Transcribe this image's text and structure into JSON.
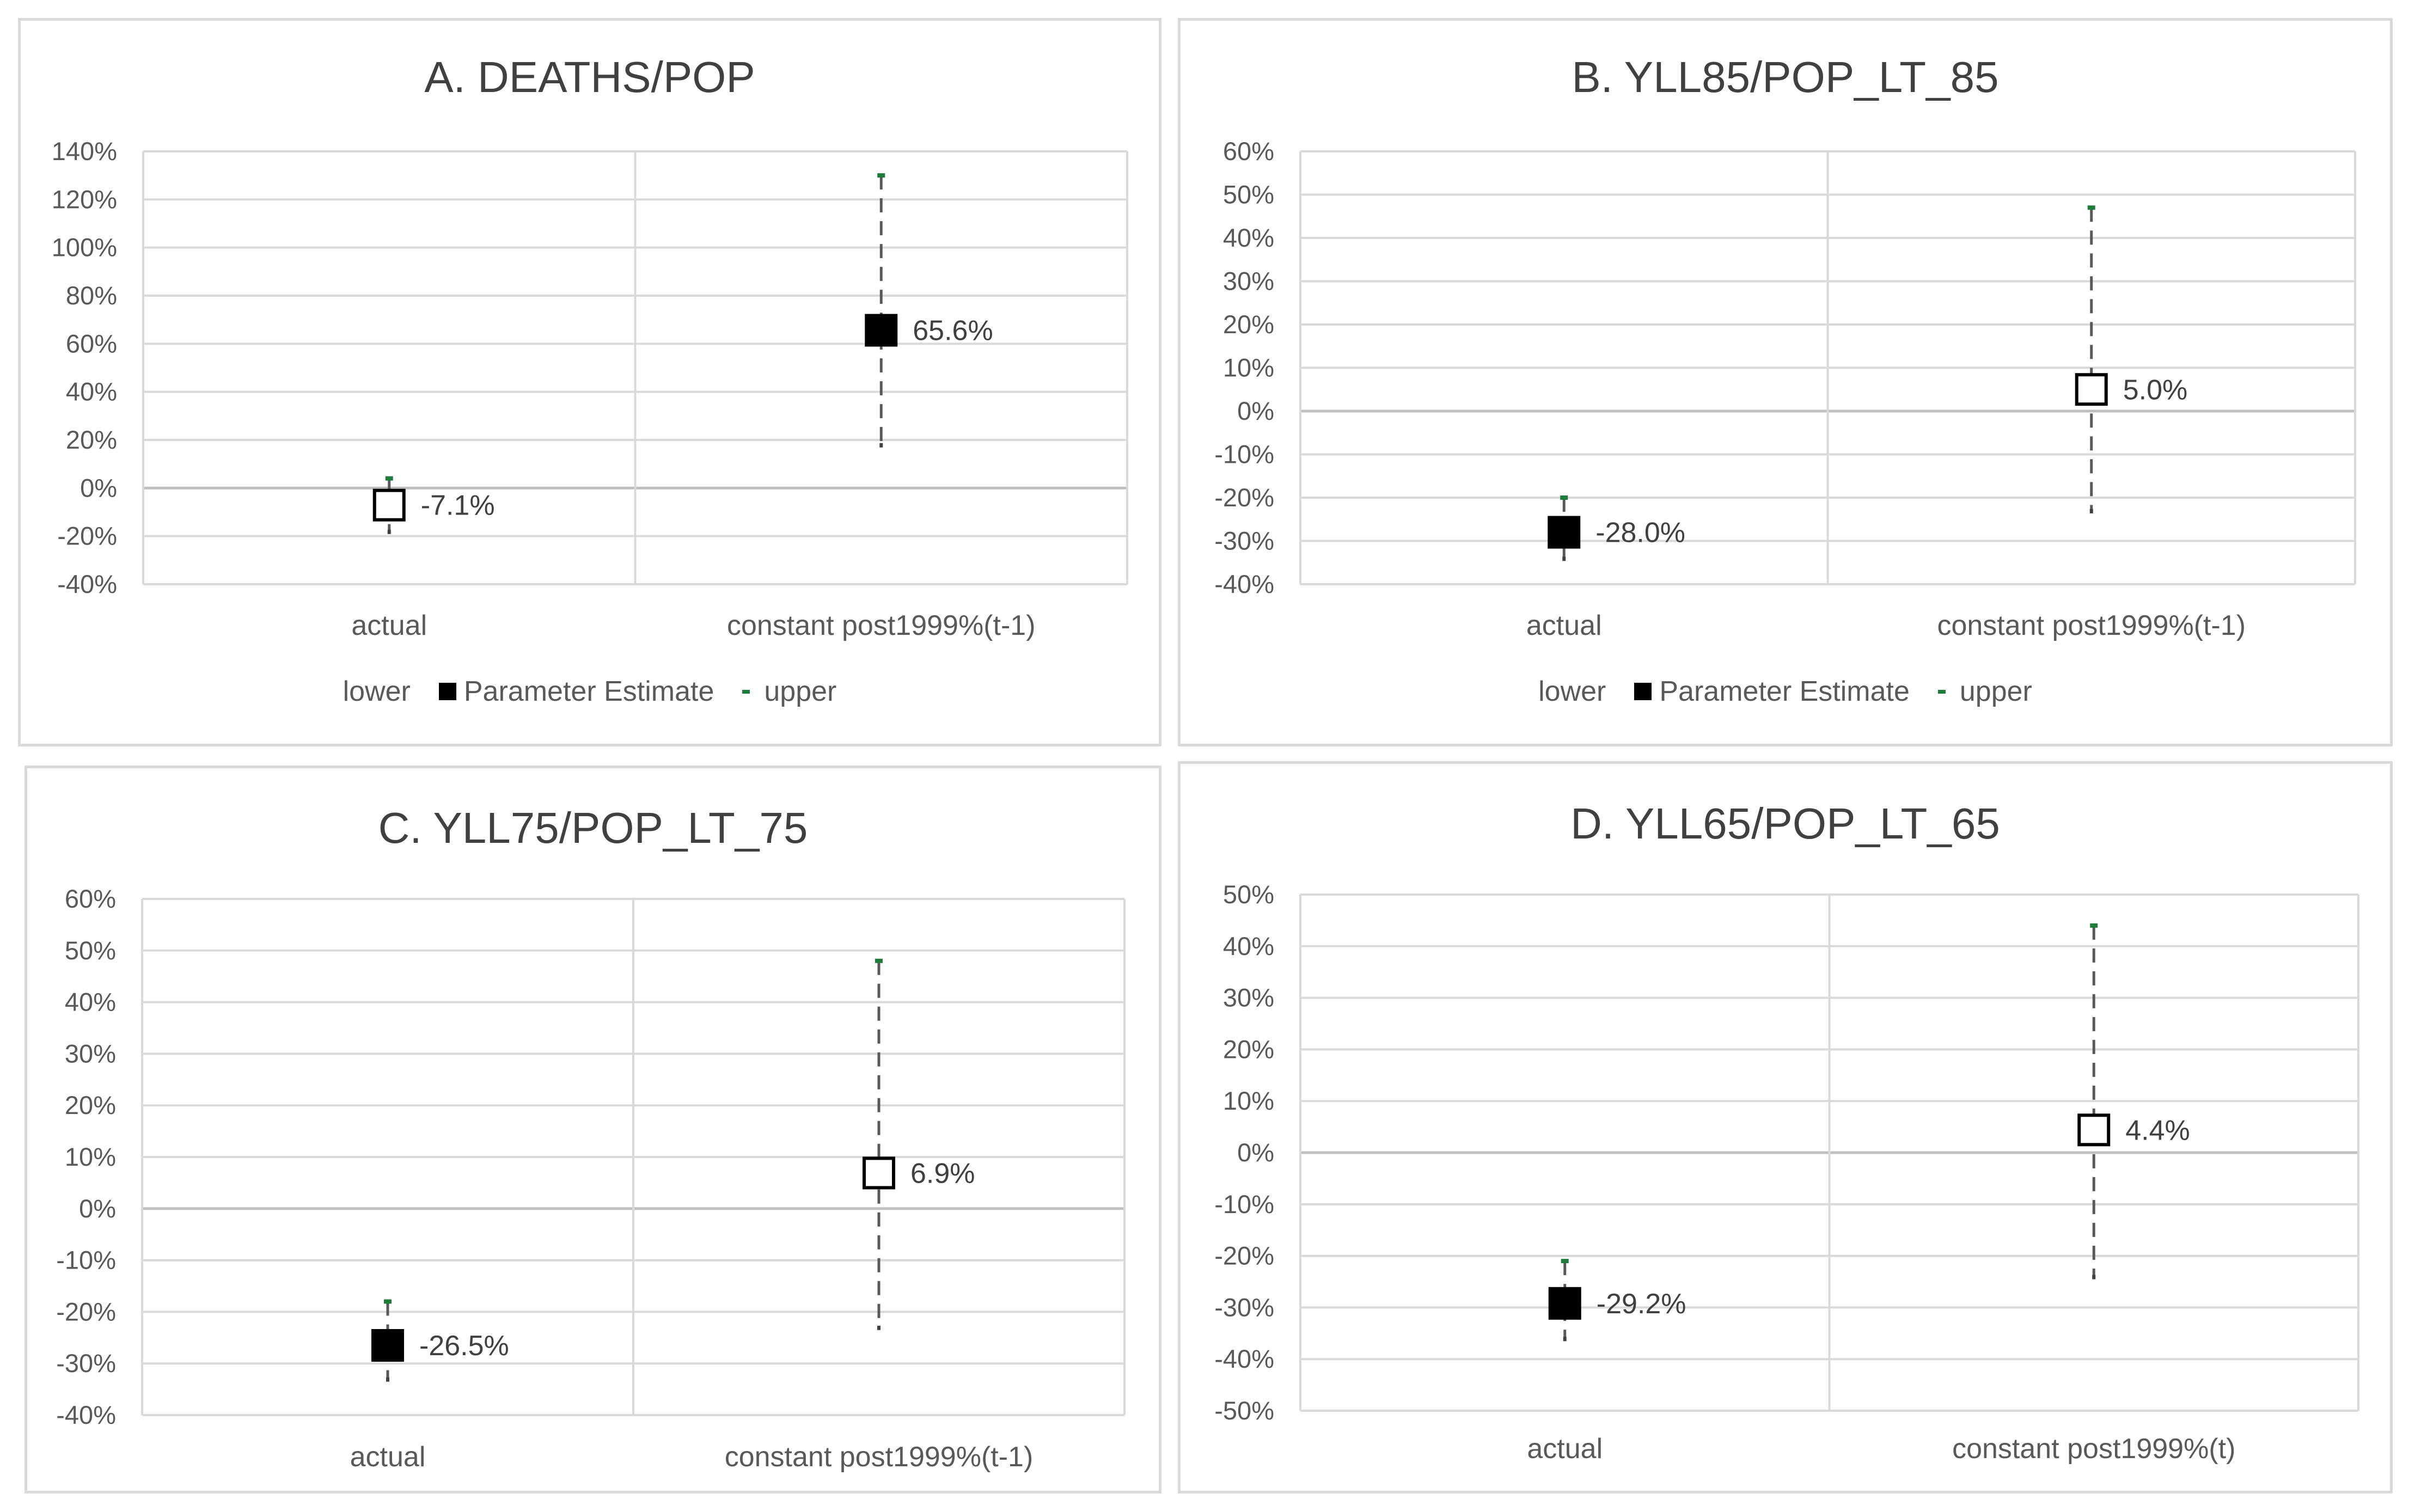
{
  "chart_data": [
    {
      "type": "scatter",
      "title": "A. DEATHS/POP",
      "categories": [
        "actual",
        "constant post1999%(t-1)"
      ],
      "ylim": [
        -0.4,
        1.4
      ],
      "yticks": [
        1.4,
        1.2,
        1.0,
        0.8,
        0.6,
        0.4,
        0.2,
        0.0,
        -0.2,
        -0.4
      ],
      "ytick_labels": [
        "140%",
        "120%",
        "100%",
        "80%",
        "60%",
        "40%",
        "20%",
        "0%",
        "-20%",
        "-40%"
      ],
      "series": [
        {
          "name": "lower",
          "values": [
            -0.18,
            0.18
          ]
        },
        {
          "name": "Parameter Estimate",
          "values": [
            -0.071,
            0.656
          ]
        },
        {
          "name": "upper",
          "values": [
            0.04,
            1.3
          ]
        }
      ],
      "data_labels": [
        "-7.1%",
        "65.6%"
      ],
      "marker_fill": [
        "white",
        "black"
      ],
      "legend": "bottom",
      "grid": true
    },
    {
      "type": "scatter",
      "title": "B. YLL85/POP_LT_85",
      "categories": [
        "actual",
        "constant post1999%(t-1)"
      ],
      "ylim": [
        -0.4,
        0.6
      ],
      "yticks": [
        0.6,
        0.5,
        0.4,
        0.3,
        0.2,
        0.1,
        0.0,
        -0.1,
        -0.2,
        -0.3,
        -0.4
      ],
      "ytick_labels": [
        "60%",
        "50%",
        "40%",
        "30%",
        "20%",
        "10%",
        "0%",
        "-10%",
        "-20%",
        "-30%",
        "-40%"
      ],
      "series": [
        {
          "name": "lower",
          "values": [
            -0.34,
            -0.23
          ]
        },
        {
          "name": "Parameter Estimate",
          "values": [
            -0.28,
            0.05
          ]
        },
        {
          "name": "upper",
          "values": [
            -0.2,
            0.47
          ]
        }
      ],
      "data_labels": [
        "-28.0%",
        "5.0%"
      ],
      "marker_fill": [
        "black",
        "white"
      ],
      "legend": "bottom",
      "grid": true
    },
    {
      "type": "scatter",
      "title": "C. YLL75/POP_LT_75",
      "categories": [
        "actual",
        "constant post1999%(t-1)"
      ],
      "ylim": [
        -0.4,
        0.6
      ],
      "yticks": [
        0.6,
        0.5,
        0.4,
        0.3,
        0.2,
        0.1,
        0.0,
        -0.1,
        -0.2,
        -0.3,
        -0.4
      ],
      "ytick_labels": [
        "60%",
        "50%",
        "40%",
        "30%",
        "20%",
        "10%",
        "0%",
        "-10%",
        "-20%",
        "-30%",
        "-40%"
      ],
      "series": [
        {
          "name": "lower",
          "values": [
            -0.33,
            -0.23
          ]
        },
        {
          "name": "Parameter Estimate",
          "values": [
            -0.265,
            0.069
          ]
        },
        {
          "name": "upper",
          "values": [
            -0.18,
            0.48
          ]
        }
      ],
      "data_labels": [
        "-26.5%",
        "6.9%"
      ],
      "marker_fill": [
        "black",
        "white"
      ],
      "grid": true
    },
    {
      "type": "scatter",
      "title": "D. YLL65/POP_LT_65",
      "categories": [
        "actual",
        "constant post1999%(t)"
      ],
      "ylim": [
        -0.5,
        0.5
      ],
      "yticks": [
        0.5,
        0.4,
        0.3,
        0.2,
        0.1,
        0.0,
        -0.1,
        -0.2,
        -0.3,
        -0.4,
        -0.5
      ],
      "ytick_labels": [
        "50%",
        "40%",
        "30%",
        "20%",
        "10%",
        "0%",
        "-10%",
        "-20%",
        "-30%",
        "-40%",
        "-50%"
      ],
      "series": [
        {
          "name": "lower",
          "values": [
            -0.36,
            -0.24
          ]
        },
        {
          "name": "Parameter Estimate",
          "values": [
            -0.292,
            0.044
          ]
        },
        {
          "name": "upper",
          "values": [
            -0.21,
            0.44
          ]
        }
      ],
      "data_labels": [
        "-29.2%",
        "4.4%"
      ],
      "marker_fill": [
        "black",
        "white"
      ],
      "grid": true
    }
  ],
  "legend_labels": {
    "lower": "lower",
    "estimate": "Parameter Estimate",
    "upper": "upper"
  },
  "colors": {
    "grid": "#d9d9d9",
    "zero_line": "#bfbfbf",
    "whisker": "#595959",
    "upper_cap": "#1e7b3a",
    "text": "#595959",
    "title": "#404040"
  }
}
